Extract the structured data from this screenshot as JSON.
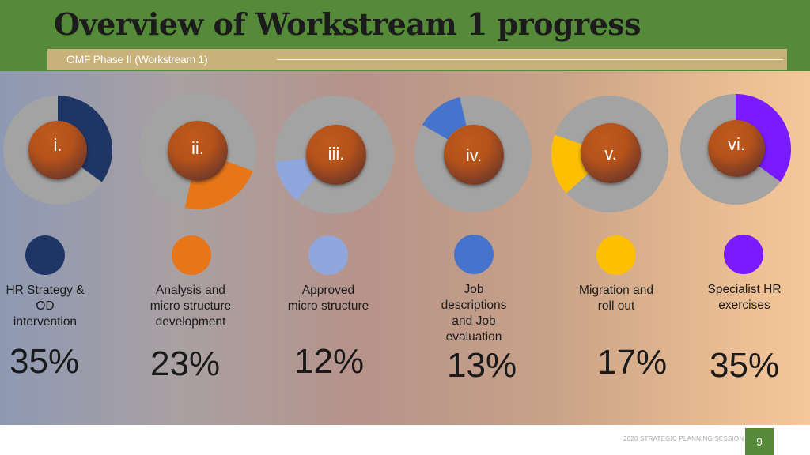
{
  "header": {
    "title": "Overview of Workstream 1 progress",
    "subtitle": "OMF Phase II (Workstream 1)"
  },
  "colors": {
    "header_green": "#558a38",
    "subtitle_bar": "#c9b27a",
    "ring_track": "#a3a3a3"
  },
  "workstreams": [
    {
      "roman": "i.",
      "label_lines": [
        "HR Strategy &",
        "OD",
        "intervention"
      ],
      "percent_text": "35%",
      "percent": 35,
      "color": "#1f3566"
    },
    {
      "roman": "ii.",
      "label_lines": [
        "Analysis and",
        "micro structure",
        "development"
      ],
      "percent_text": "23%",
      "percent": 23,
      "color": "#e77618"
    },
    {
      "roman": "iii.",
      "label_lines": [
        "Approved",
        "micro structure"
      ],
      "percent_text": "12%",
      "percent": 12,
      "color": "#8fa7dd"
    },
    {
      "roman": "iv.",
      "label_lines": [
        "Job",
        "descriptions",
        "and Job",
        "evaluation"
      ],
      "percent_text": "13%",
      "percent": 13,
      "color": "#4673cc"
    },
    {
      "roman": "v.",
      "label_lines": [
        "Migration and",
        "roll out"
      ],
      "percent_text": "17%",
      "percent": 17,
      "color": "#fdbf00"
    },
    {
      "roman": "vi.",
      "label_lines": [
        "Specialist HR",
        "exercises"
      ],
      "percent_text": "35%",
      "percent": 35,
      "color": "#7a1bff"
    }
  ],
  "footer": {
    "session": "2020 STRATEGIC PLANNING SESSION",
    "page": "9"
  }
}
